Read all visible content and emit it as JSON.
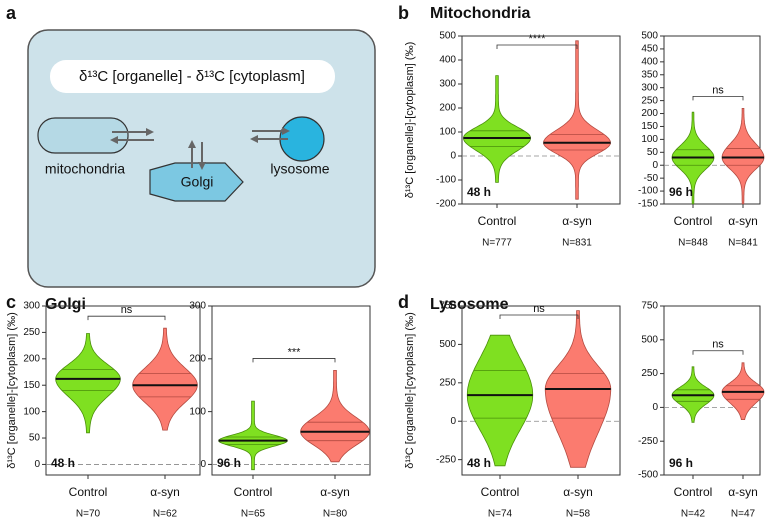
{
  "panel_labels": [
    "a",
    "b",
    "c",
    "d"
  ],
  "diagram": {
    "equation": "δ¹³C [organelle] - δ¹³C [cytoplasm]",
    "organelles": [
      "mitochondria",
      "Golgi",
      "lysosome"
    ]
  },
  "chart_data": [
    {
      "type": "violin",
      "title": "Mitochondria",
      "y_label": "δ¹³C [organelle]-[cytoplasm] (‰)",
      "time_label": "48 h",
      "significance": "****",
      "categories": [
        "Control",
        "α-syn"
      ],
      "n_labels": [
        "N=777",
        "N=831"
      ],
      "ylim": [
        -200,
        500
      ],
      "yticks": [
        -200,
        -100,
        0,
        100,
        200,
        300,
        400,
        500
      ],
      "violins": [
        {
          "color": "#7fe021",
          "min": -110,
          "q1": 40,
          "median": 75,
          "q3": 105,
          "max": 335
        },
        {
          "color": "#fb7b6f",
          "min": -180,
          "q1": 25,
          "median": 55,
          "q3": 90,
          "max": 480
        }
      ]
    },
    {
      "type": "violin",
      "time_label": "96 h",
      "significance": "ns",
      "categories": [
        "Control",
        "α-syn"
      ],
      "n_labels": [
        "N=848",
        "N=841"
      ],
      "ylim": [
        -150,
        500
      ],
      "yticks": [
        -150,
        -100,
        -50,
        0,
        50,
        100,
        150,
        200,
        250,
        300,
        350,
        400,
        450,
        500
      ],
      "violins": [
        {
          "color": "#7fe021",
          "min": -150,
          "q1": 0,
          "median": 30,
          "q3": 60,
          "max": 205
        },
        {
          "color": "#fb7b6f",
          "min": -150,
          "q1": 0,
          "median": 30,
          "q3": 65,
          "max": 220
        }
      ]
    },
    {
      "type": "violin",
      "title": "Golgi",
      "y_label": "δ¹³C [organelle]-[cytoplasm] (‰)",
      "time_label": "48 h",
      "significance": "ns",
      "categories": [
        "Control",
        "α-syn"
      ],
      "n_labels": [
        "N=70",
        "N=62"
      ],
      "ylim": [
        -20,
        300
      ],
      "yticks": [
        0,
        50,
        100,
        150,
        200,
        250,
        300
      ],
      "violins": [
        {
          "color": "#7fe021",
          "min": 60,
          "q1": 140,
          "median": 162,
          "q3": 180,
          "max": 248
        },
        {
          "color": "#fb7b6f",
          "min": 65,
          "q1": 128,
          "median": 150,
          "q3": 172,
          "max": 258
        }
      ]
    },
    {
      "type": "violin",
      "time_label": "96 h",
      "significance": "***",
      "categories": [
        "Control",
        "α-syn"
      ],
      "n_labels": [
        "N=65",
        "N=80"
      ],
      "ylim": [
        -20,
        300
      ],
      "yticks": [
        0,
        100,
        200,
        300
      ],
      "violins": [
        {
          "color": "#7fe021",
          "min": -10,
          "q1": 38,
          "median": 45,
          "q3": 52,
          "max": 120
        },
        {
          "color": "#fb7b6f",
          "min": 5,
          "q1": 45,
          "median": 62,
          "q3": 80,
          "max": 178
        }
      ]
    },
    {
      "type": "violin",
      "title": "Lysosome",
      "y_label": "δ¹³C [organelle]-[cytoplasm] (‰)",
      "time_label": "48 h",
      "significance": "ns",
      "categories": [
        "Control",
        "α-syn"
      ],
      "n_labels": [
        "N=74",
        "N=58"
      ],
      "ylim": [
        -350,
        750
      ],
      "yticks": [
        -250,
        0,
        250,
        500,
        750
      ],
      "violins": [
        {
          "color": "#7fe021",
          "min": -290,
          "q1": 20,
          "median": 170,
          "q3": 330,
          "max": 560
        },
        {
          "color": "#fb7b6f",
          "min": -300,
          "q1": 20,
          "median": 210,
          "q3": 310,
          "max": 720
        }
      ]
    },
    {
      "type": "violin",
      "time_label": "96 h",
      "significance": "ns",
      "categories": [
        "Control",
        "α-syn"
      ],
      "n_labels": [
        "N=42",
        "N=47"
      ],
      "ylim": [
        -500,
        750
      ],
      "yticks": [
        -500,
        -250,
        0,
        250,
        500,
        750
      ],
      "violins": [
        {
          "color": "#7fe021",
          "min": -110,
          "q1": 45,
          "median": 90,
          "q3": 130,
          "max": 300
        },
        {
          "color": "#fb7b6f",
          "min": -90,
          "q1": 60,
          "median": 115,
          "q3": 160,
          "max": 330
        }
      ]
    }
  ]
}
